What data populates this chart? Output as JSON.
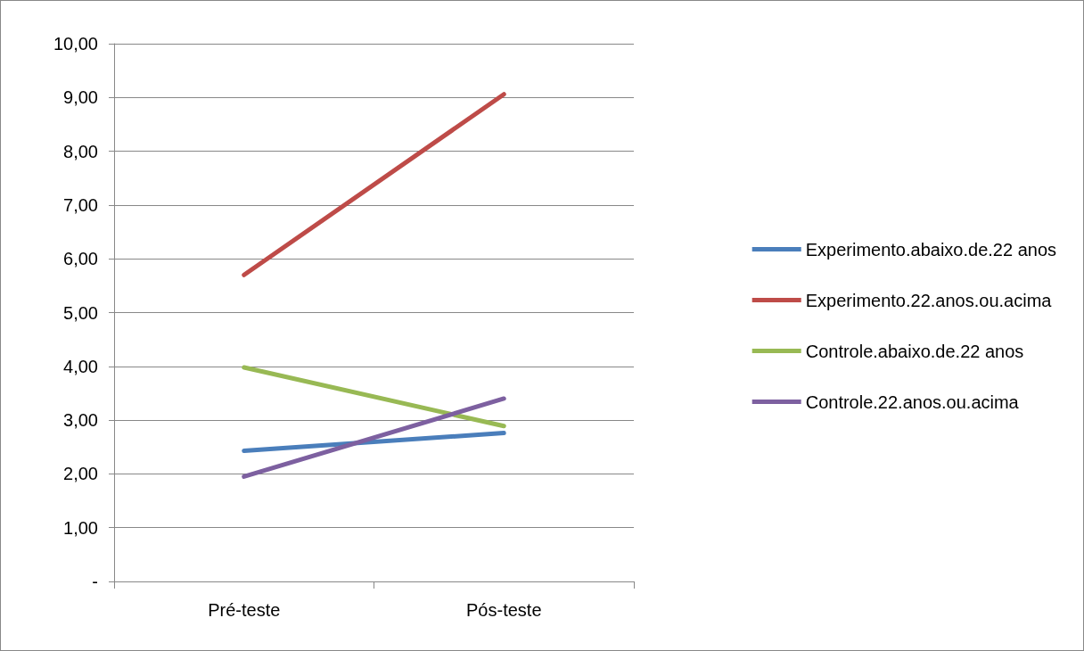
{
  "chart_data": {
    "type": "line",
    "categories": [
      "Pré-teste",
      "Pós-teste"
    ],
    "series": [
      {
        "name": "Experimento.abaixo.de.22 anos",
        "color": "#4a7ebb",
        "values": [
          2.43,
          2.76
        ]
      },
      {
        "name": "Experimento.22.anos.ou.acima",
        "color": "#be4b48",
        "values": [
          5.7,
          9.06
        ]
      },
      {
        "name": "Controle.abaixo.de.22 anos",
        "color": "#98b954",
        "values": [
          3.98,
          2.89
        ]
      },
      {
        "name": "Controle.22.anos.ou.acima",
        "color": "#7d60a0",
        "values": [
          1.95,
          3.4
        ]
      }
    ],
    "ylim": [
      0,
      10
    ],
    "yticks": [
      {
        "value": 0,
        "label": "-"
      },
      {
        "value": 1,
        "label": "1,00"
      },
      {
        "value": 2,
        "label": "2,00"
      },
      {
        "value": 3,
        "label": "3,00"
      },
      {
        "value": 4,
        "label": "4,00"
      },
      {
        "value": 5,
        "label": "5,00"
      },
      {
        "value": 6,
        "label": "6,00"
      },
      {
        "value": 7,
        "label": "7,00"
      },
      {
        "value": 8,
        "label": "8,00"
      },
      {
        "value": 9,
        "label": "9,00"
      },
      {
        "value": 10,
        "label": "10,00"
      }
    ],
    "grid": "y",
    "legend": "right",
    "marker": "none",
    "line_style": "solid"
  }
}
